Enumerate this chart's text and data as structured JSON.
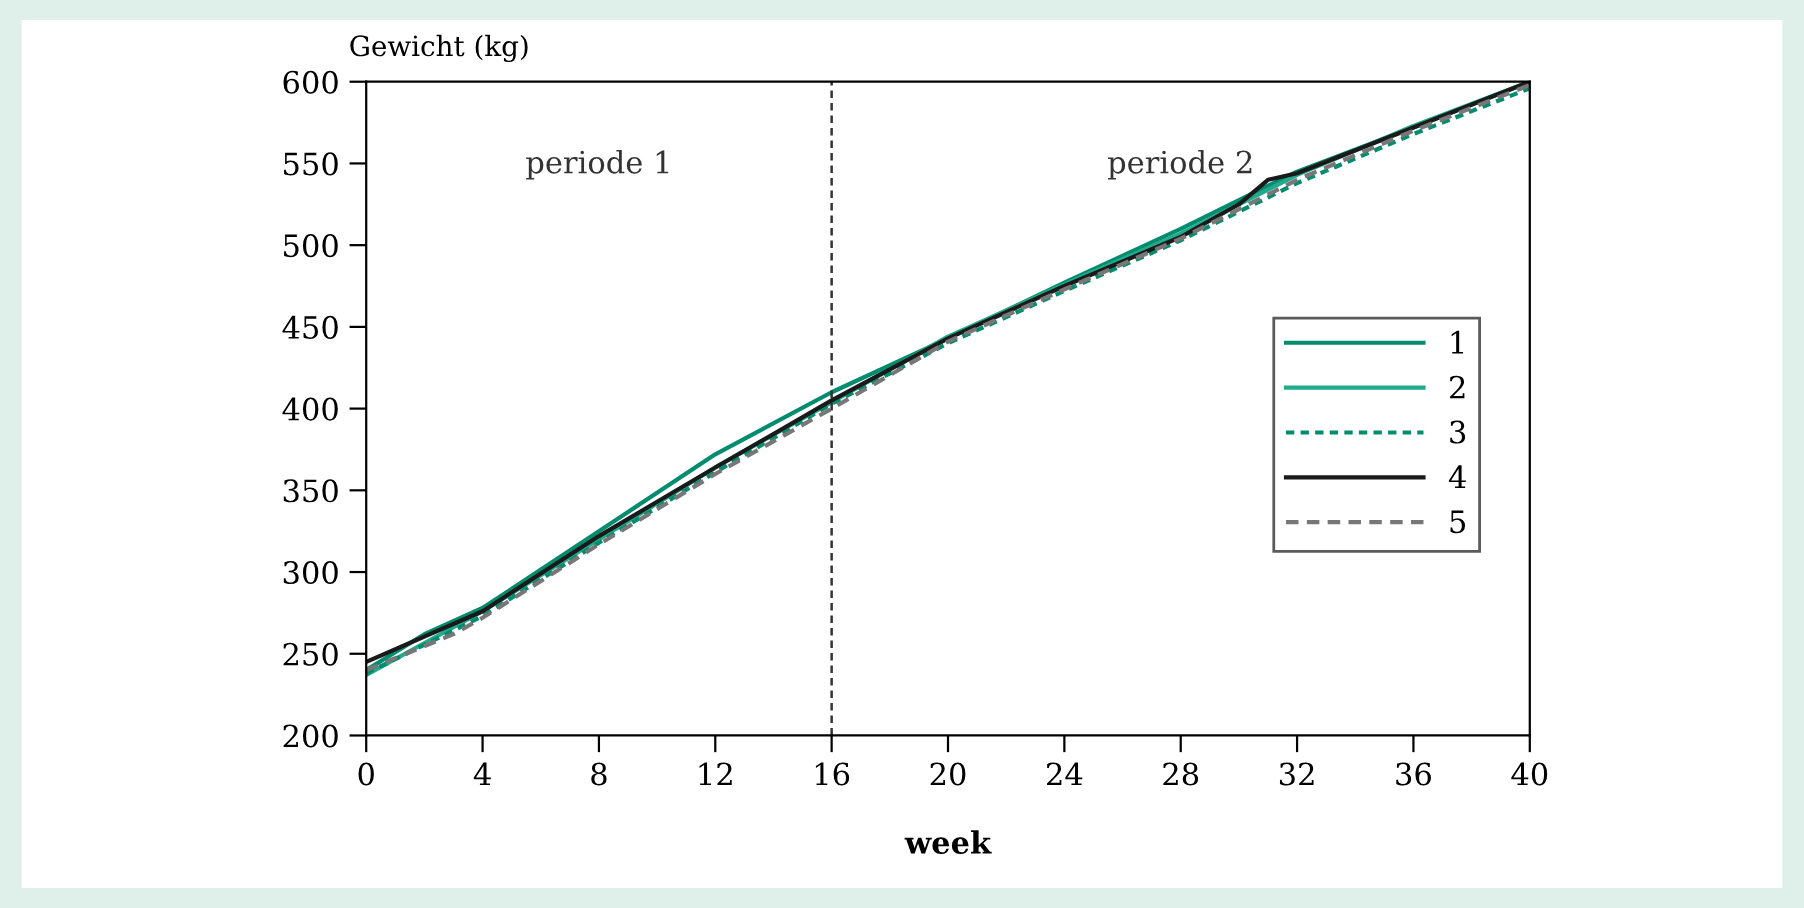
{
  "chart_data": {
    "type": "line",
    "xlabel": "week",
    "ylabel": "Gewicht (kg)",
    "xlim": [
      0,
      40
    ],
    "xticks": [
      0,
      4,
      8,
      12,
      16,
      20,
      24,
      28,
      32,
      36,
      40
    ],
    "ylim": [
      200,
      600
    ],
    "yticks": [
      200,
      250,
      300,
      350,
      400,
      450,
      500,
      550,
      600
    ],
    "grid": false,
    "legend": "right",
    "marker": "none",
    "ref_lines": [
      {
        "axis": "x",
        "value": 16,
        "label": null,
        "color": "#333333",
        "line_style": "dashed"
      }
    ],
    "annotations": [
      "periode 1",
      "periode 2"
    ],
    "series": [
      {
        "name": "1",
        "color": "#008c6e",
        "line_style": "solid",
        "x": [
          0,
          2,
          4,
          8,
          12,
          16,
          20,
          24,
          28,
          32,
          36,
          40
        ],
        "values": [
          240,
          262,
          278,
          325,
          372,
          410,
          443,
          477,
          510,
          545,
          572,
          600
        ]
      },
      {
        "name": "2",
        "color": "#22aa8c",
        "line_style": "solid",
        "x": [
          0,
          4,
          8,
          12,
          16,
          20,
          24,
          28,
          32,
          36,
          40
        ],
        "values": [
          237,
          276,
          320,
          364,
          404,
          444,
          476,
          507,
          543,
          573,
          600
        ]
      },
      {
        "name": "3",
        "color": "#008c6e",
        "line_style": "dotted",
        "x": [
          0,
          4,
          8,
          12,
          16,
          20,
          24,
          28,
          32,
          36,
          40
        ],
        "values": [
          238,
          273,
          318,
          361,
          403,
          440,
          472,
          503,
          538,
          568,
          596
        ]
      },
      {
        "name": "4",
        "color": "#1a1a1a",
        "line_style": "solid",
        "x": [
          0,
          4,
          8,
          12,
          16,
          20,
          24,
          28,
          30,
          31,
          32,
          36,
          40
        ],
        "values": [
          245,
          276,
          322,
          364,
          405,
          443,
          475,
          505,
          525,
          540,
          544,
          572,
          600
        ]
      },
      {
        "name": "5",
        "color": "#777777",
        "line_style": "dashed",
        "x": [
          0,
          3,
          4,
          8,
          12,
          16,
          20,
          24,
          28,
          32,
          36,
          40
        ],
        "values": [
          240,
          262,
          272,
          317,
          360,
          400,
          441,
          473,
          504,
          540,
          570,
          598
        ]
      }
    ]
  }
}
